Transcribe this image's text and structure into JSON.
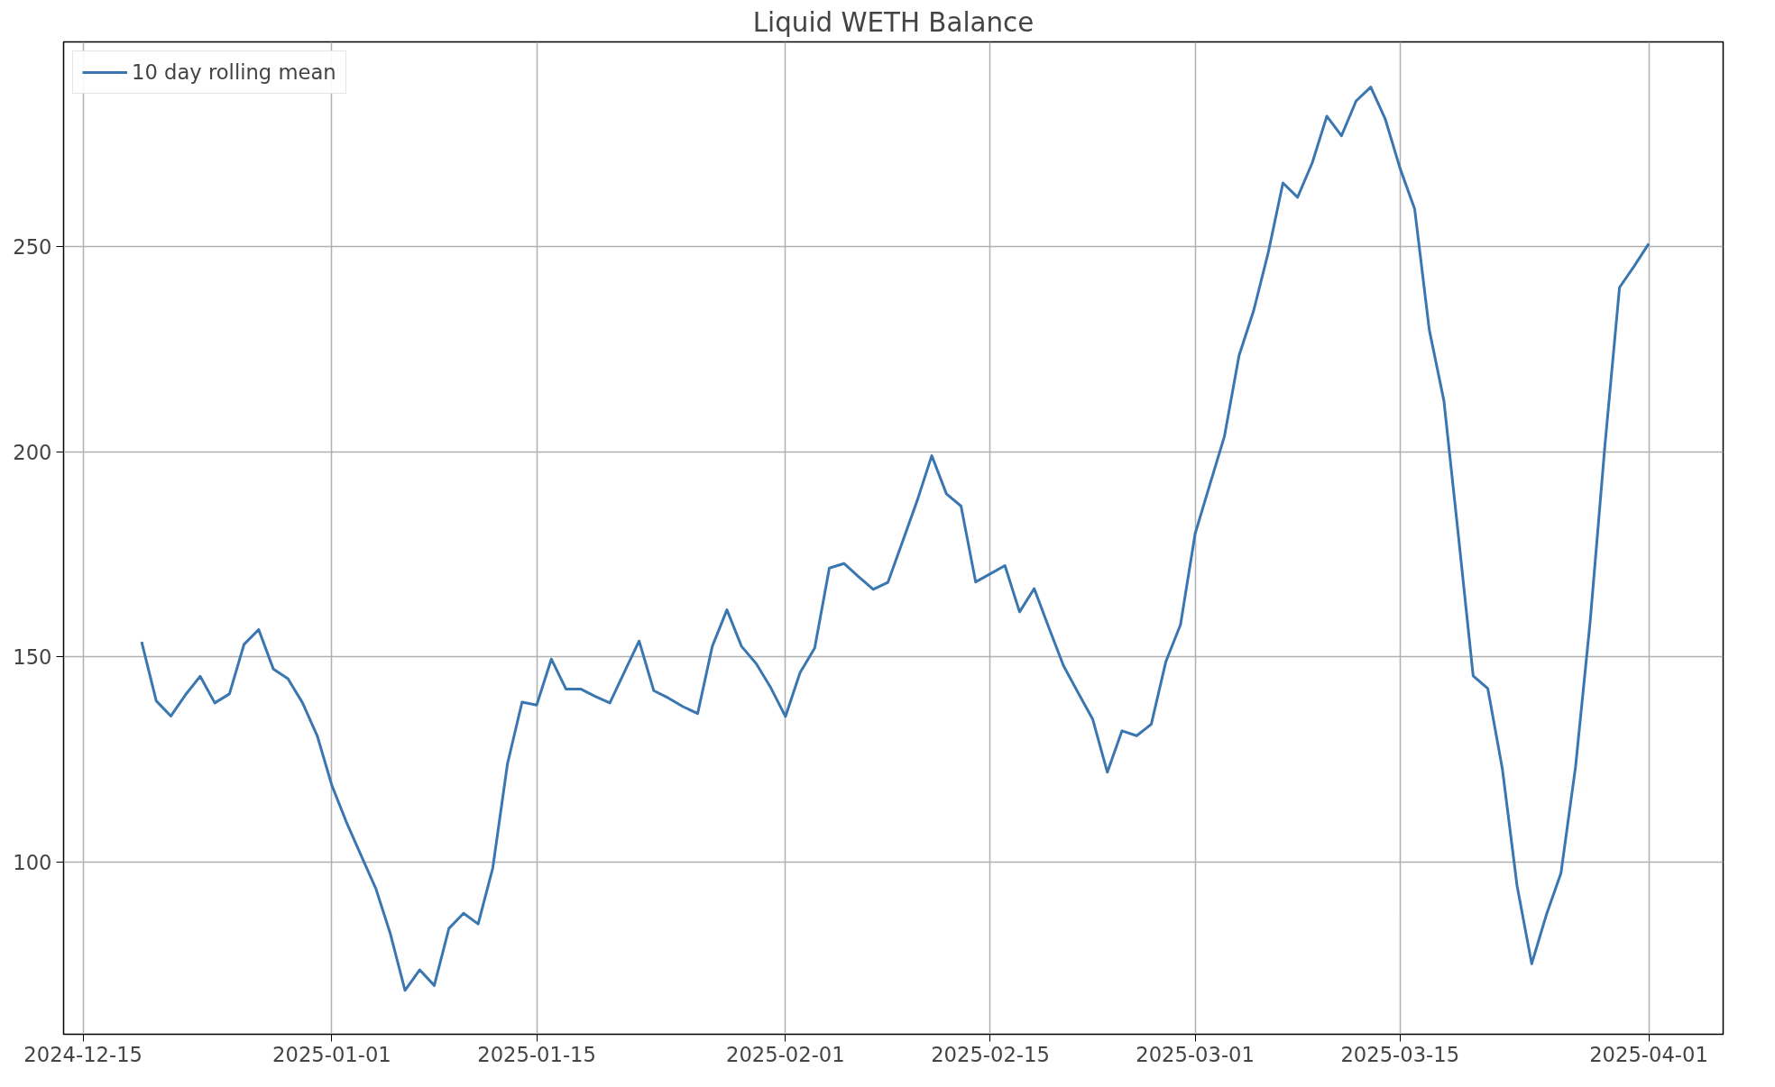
{
  "chart_data": {
    "type": "line",
    "title": "Liquid WETH Balance",
    "x": [
      "2024-12-19",
      "2024-12-20",
      "2024-12-21",
      "2024-12-22",
      "2024-12-23",
      "2024-12-24",
      "2024-12-25",
      "2024-12-26",
      "2024-12-27",
      "2024-12-28",
      "2024-12-29",
      "2024-12-30",
      "2024-12-31",
      "2025-01-01",
      "2025-01-02",
      "2025-01-03",
      "2025-01-04",
      "2025-01-05",
      "2025-01-06",
      "2025-01-07",
      "2025-01-08",
      "2025-01-09",
      "2025-01-10",
      "2025-01-11",
      "2025-01-12",
      "2025-01-13",
      "2025-01-14",
      "2025-01-15",
      "2025-01-16",
      "2025-01-17",
      "2025-01-18",
      "2025-01-19",
      "2025-01-20",
      "2025-01-21",
      "2025-01-22",
      "2025-01-23",
      "2025-01-24",
      "2025-01-25",
      "2025-01-26",
      "2025-01-27",
      "2025-01-28",
      "2025-01-29",
      "2025-01-30",
      "2025-01-31",
      "2025-02-01",
      "2025-02-02",
      "2025-02-03",
      "2025-02-04",
      "2025-02-05",
      "2025-02-06",
      "2025-02-07",
      "2025-02-08",
      "2025-02-09",
      "2025-02-10",
      "2025-02-11",
      "2025-02-12",
      "2025-02-13",
      "2025-02-14",
      "2025-02-15",
      "2025-02-16",
      "2025-02-17",
      "2025-02-18",
      "2025-02-19",
      "2025-02-20",
      "2025-02-21",
      "2025-02-22",
      "2025-02-23",
      "2025-02-24",
      "2025-02-25",
      "2025-02-26",
      "2025-02-27",
      "2025-02-28",
      "2025-03-01",
      "2025-03-02",
      "2025-03-03",
      "2025-03-04",
      "2025-03-05",
      "2025-03-06",
      "2025-03-07",
      "2025-03-08",
      "2025-03-09",
      "2025-03-10",
      "2025-03-11",
      "2025-03-12",
      "2025-03-13",
      "2025-03-14",
      "2025-03-15",
      "2025-03-16",
      "2025-03-17",
      "2025-03-18",
      "2025-03-19",
      "2025-03-20",
      "2025-03-21",
      "2025-03-22",
      "2025-03-23",
      "2025-03-24",
      "2025-03-25",
      "2025-03-26",
      "2025-03-27",
      "2025-03-28",
      "2025-03-29",
      "2025-03-30",
      "2025-03-31",
      "2025-04-01"
    ],
    "series": [
      {
        "name": "10 day rolling mean",
        "color": "#3a76b0",
        "values": [
          153.7,
          139.3,
          135.6,
          140.8,
          145.3,
          138.8,
          141,
          153.1,
          156.7,
          147.1,
          144.7,
          138.8,
          130.8,
          118.7,
          109.7,
          101.6,
          93.6,
          82.5,
          68.7,
          73.7,
          69.9,
          83.8,
          87.5,
          84.9,
          98.6,
          123.9,
          139,
          138.3,
          149.5,
          142.2,
          142.2,
          140.4,
          138.8,
          146.4,
          153.9,
          141.8,
          140,
          137.9,
          136.2,
          152.6,
          161.5,
          152.6,
          148.4,
          142.5,
          135.5,
          146.2,
          152.2,
          171.7,
          172.8,
          169.6,
          166.5,
          168.2,
          178.1,
          188.1,
          199.1,
          189.8,
          186.8,
          168.3,
          170.3,
          172.3,
          161,
          166.7,
          157.2,
          147.9,
          141.3,
          134.8,
          121.9,
          132,
          130.8,
          133.6,
          148.9,
          157.9,
          180.1,
          192,
          203.8,
          223.5,
          234.5,
          248.7,
          265.6,
          262.1,
          270.5,
          281.9,
          277.1,
          285.6,
          289,
          281.1,
          269.2,
          259.3,
          229.8,
          212.5,
          179.3,
          145.4,
          142.3,
          122.6,
          94.2,
          75.2,
          87.1,
          97.3,
          123.3,
          158.8,
          201.4,
          240.1,
          245.3,
          250.8
        ]
      }
    ],
    "xlim": [
      "2024-12-13T16:00",
      "2025-04-06T02:00"
    ],
    "xticks": [
      "2024-12-15",
      "2025-01-01",
      "2025-01-15",
      "2025-02-01",
      "2025-02-15",
      "2025-03-01",
      "2025-03-15",
      "2025-04-01"
    ],
    "ylim": [
      58,
      300
    ],
    "yticks": [
      100,
      150,
      200,
      250
    ],
    "grid": true,
    "legend": "top left",
    "line_style": "solid"
  }
}
